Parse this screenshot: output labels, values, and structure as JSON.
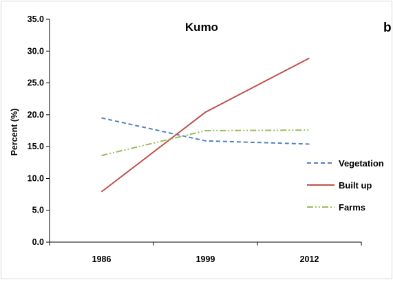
{
  "chart_data": {
    "type": "line",
    "title": "Kumo",
    "panel_label": "b",
    "xlabel": "",
    "ylabel": "Percent (%)",
    "categories": [
      "1986",
      "1999",
      "2012"
    ],
    "ylim": [
      0,
      35
    ],
    "yticks": [
      "0.0",
      "5.0",
      "10.0",
      "15.0",
      "20.0",
      "25.0",
      "30.0",
      "35.0"
    ],
    "grid": false,
    "legend_position": "right",
    "series": [
      {
        "name": "Vegetation",
        "values": [
          19.5,
          15.9,
          15.4
        ],
        "color": "#4f81bd",
        "dash": "6,4"
      },
      {
        "name": "Built up",
        "values": [
          7.9,
          20.4,
          28.9
        ],
        "color": "#c0504d",
        "dash": ""
      },
      {
        "name": "Farms",
        "values": [
          13.6,
          17.5,
          17.6
        ],
        "color": "#9bbb59",
        "dash": "9,3,2,3,2,3"
      }
    ]
  }
}
